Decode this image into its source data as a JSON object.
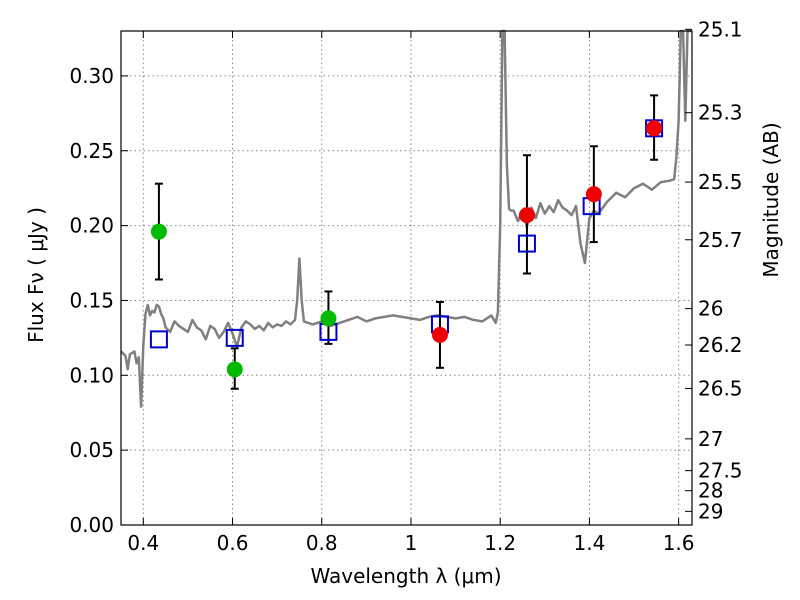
{
  "chart_data": {
    "type": "scatter",
    "xlabel": "Wavelength  λ (μm)",
    "ylabel": "Flux  Fν  ( μJy )",
    "ylabel_right": "Magnitude (AB)",
    "xlim": [
      0.35,
      1.63
    ],
    "ylim": [
      0.0,
      0.33
    ],
    "grid": true,
    "x_ticks": [
      0.4,
      0.6,
      0.8,
      1.0,
      1.2,
      1.4,
      1.6
    ],
    "x_tick_labels": [
      "0.4",
      "0.6",
      "0.8",
      "1",
      "1.2",
      "1.4",
      "1.6"
    ],
    "y_ticks": [
      0.0,
      0.05,
      0.1,
      0.15,
      0.2,
      0.25,
      0.3
    ],
    "y_tick_labels": [
      "0.00",
      "0.05",
      "0.10",
      "0.15",
      "0.20",
      "0.25",
      "0.30"
    ],
    "mag_ticks": [
      25.1,
      25.3,
      25.5,
      25.7,
      26,
      26.2,
      26.5,
      27,
      27.5,
      28,
      29
    ],
    "mag_tick_labels": [
      "25.1",
      "25.3",
      "25.5",
      "25.7",
      "26",
      "26.2",
      "26.5",
      "27",
      "27.5",
      "28",
      "29"
    ],
    "colors": {
      "model": "#808080",
      "green": "#00bb00",
      "red": "#ee0000",
      "box": "#0000cc",
      "error": "#000000",
      "grid": "#888888"
    },
    "model_spectrum": {
      "x": [
        0.35,
        0.36,
        0.365,
        0.37,
        0.38,
        0.385,
        0.39,
        0.395,
        0.4,
        0.405,
        0.41,
        0.415,
        0.42,
        0.425,
        0.43,
        0.435,
        0.44,
        0.445,
        0.45,
        0.46,
        0.47,
        0.48,
        0.49,
        0.5,
        0.51,
        0.52,
        0.53,
        0.54,
        0.55,
        0.56,
        0.57,
        0.58,
        0.59,
        0.6,
        0.61,
        0.62,
        0.63,
        0.64,
        0.65,
        0.66,
        0.67,
        0.68,
        0.69,
        0.7,
        0.71,
        0.72,
        0.73,
        0.74,
        0.745,
        0.75,
        0.755,
        0.76,
        0.78,
        0.8,
        0.82,
        0.84,
        0.86,
        0.88,
        0.9,
        0.92,
        0.94,
        0.96,
        0.98,
        1.0,
        1.02,
        1.04,
        1.06,
        1.08,
        1.1,
        1.12,
        1.14,
        1.16,
        1.18,
        1.19,
        1.195,
        1.2,
        1.205,
        1.21,
        1.215,
        1.22,
        1.225,
        1.23,
        1.24,
        1.25,
        1.26,
        1.27,
        1.28,
        1.29,
        1.3,
        1.31,
        1.32,
        1.33,
        1.34,
        1.35,
        1.36,
        1.37,
        1.38,
        1.39,
        1.4,
        1.41,
        1.42,
        1.43,
        1.44,
        1.46,
        1.48,
        1.5,
        1.52,
        1.54,
        1.56,
        1.58,
        1.59,
        1.595,
        1.6,
        1.605,
        1.61,
        1.615,
        1.62,
        1.625,
        1.63
      ],
      "y": [
        0.116,
        0.113,
        0.104,
        0.114,
        0.116,
        0.108,
        0.112,
        0.079,
        0.12,
        0.141,
        0.147,
        0.14,
        0.143,
        0.142,
        0.147,
        0.146,
        0.141,
        0.138,
        0.132,
        0.129,
        0.136,
        0.133,
        0.131,
        0.129,
        0.137,
        0.132,
        0.13,
        0.124,
        0.133,
        0.131,
        0.125,
        0.129,
        0.135,
        0.128,
        0.119,
        0.132,
        0.136,
        0.134,
        0.131,
        0.133,
        0.13,
        0.135,
        0.132,
        0.134,
        0.133,
        0.136,
        0.134,
        0.137,
        0.15,
        0.178,
        0.15,
        0.136,
        0.134,
        0.136,
        0.133,
        0.135,
        0.137,
        0.139,
        0.136,
        0.138,
        0.139,
        0.14,
        0.139,
        0.138,
        0.137,
        0.139,
        0.14,
        0.139,
        0.138,
        0.139,
        0.137,
        0.136,
        0.14,
        0.135,
        0.142,
        0.2,
        0.33,
        0.33,
        0.24,
        0.211,
        0.21,
        0.21,
        0.203,
        0.21,
        0.199,
        0.212,
        0.205,
        0.215,
        0.208,
        0.213,
        0.209,
        0.217,
        0.212,
        0.21,
        0.207,
        0.213,
        0.188,
        0.175,
        0.205,
        0.21,
        0.208,
        0.212,
        0.216,
        0.222,
        0.219,
        0.225,
        0.228,
        0.224,
        0.229,
        0.23,
        0.231,
        0.246,
        0.27,
        0.33,
        0.33,
        0.27,
        0.33,
        0.33,
        0.33
      ],
      "clip_top": 0.33
    },
    "green_points": {
      "x": [
        0.435,
        0.605,
        0.815
      ],
      "y": [
        0.196,
        0.104,
        0.138
      ],
      "err_low": [
        0.164,
        0.091,
        0.121
      ],
      "err_high": [
        0.228,
        0.118,
        0.156
      ]
    },
    "red_points": {
      "x": [
        1.065,
        1.26,
        1.41,
        1.545
      ],
      "y": [
        0.127,
        0.207,
        0.221,
        0.265
      ],
      "err_low": [
        0.105,
        0.168,
        0.189,
        0.244
      ],
      "err_high": [
        0.149,
        0.247,
        0.253,
        0.287
      ]
    },
    "model_boxes": {
      "x": [
        0.435,
        0.605,
        0.815,
        1.065,
        1.26,
        1.405,
        1.545
      ],
      "y": [
        0.124,
        0.125,
        0.129,
        0.134,
        0.188,
        0.213,
        0.265
      ]
    }
  }
}
